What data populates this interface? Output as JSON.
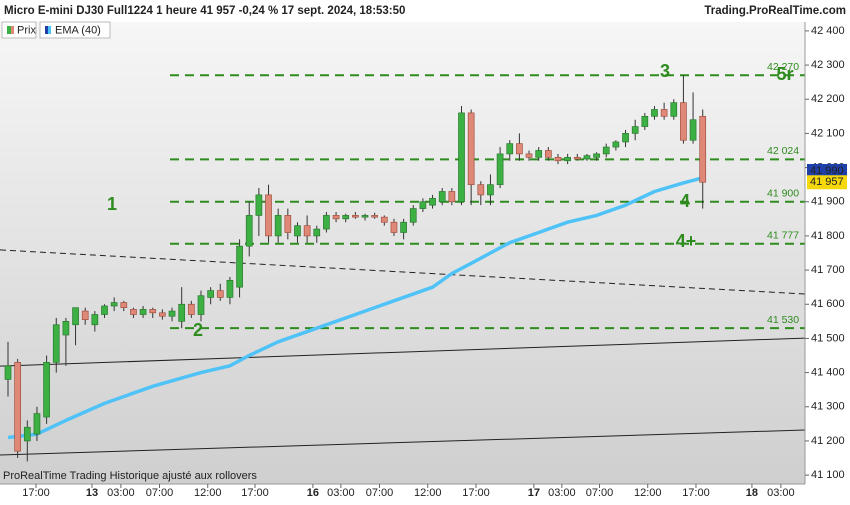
{
  "chart_data": {
    "type": "candlestick",
    "title": "Micro E-mini DJ30 Full1224 1 heure 41 957 -0,24 % 17 sept. 2024, 18:53:50",
    "source": "Trading.ProRealTime.com",
    "footer": "ProRealTime Trading  Historique ajusté aux rollovers",
    "xlim": [
      -0.83,
      82.6
    ],
    "ylim": [
      41074,
      42426
    ],
    "xticks": [
      {
        "value": 2.9,
        "label": "17:00"
      },
      {
        "value": 8.7,
        "label": "13"
      },
      {
        "value": 11.7,
        "label": "03:00"
      },
      {
        "value": 15.7,
        "label": "07:00"
      },
      {
        "value": 20.7,
        "label": "12:00"
      },
      {
        "value": 25.6,
        "label": "17:00"
      },
      {
        "value": 31.6,
        "label": "16"
      },
      {
        "value": 34.5,
        "label": "03:00"
      },
      {
        "value": 38.5,
        "label": "07:00"
      },
      {
        "value": 43.5,
        "label": "12:00"
      },
      {
        "value": 48.5,
        "label": "17:00"
      },
      {
        "value": 54.5,
        "label": "17"
      },
      {
        "value": 57.4,
        "label": "03:00"
      },
      {
        "value": 61.3,
        "label": "07:00"
      },
      {
        "value": 66.3,
        "label": "12:00"
      },
      {
        "value": 71.3,
        "label": "17:00"
      },
      {
        "value": 77.1,
        "label": "18"
      },
      {
        "value": 80.1,
        "label": "03:00"
      }
    ],
    "yticks": [
      {
        "value": 41100,
        "label": "41 100"
      },
      {
        "value": 41200,
        "label": "41 200"
      },
      {
        "value": 41300,
        "label": "41 300"
      },
      {
        "value": 41400,
        "label": "41 400"
      },
      {
        "value": 41500,
        "label": "41 500"
      },
      {
        "value": 41600,
        "label": "41 600"
      },
      {
        "value": 41700,
        "label": "41 700"
      },
      {
        "value": 41800,
        "label": "41 800"
      },
      {
        "value": 41900,
        "label": "41 900"
      },
      {
        "value": 42000,
        "label": "42 000"
      },
      {
        "value": 42100,
        "label": "42 100"
      },
      {
        "value": 42200,
        "label": "42 200"
      },
      {
        "value": 42300,
        "label": "42 300"
      },
      {
        "value": 42400,
        "label": "42 400"
      }
    ],
    "candles": {
      "name": "Prix",
      "up_color": "#3cb043",
      "down_color": "#e08878",
      "x": [
        0,
        1,
        2,
        3,
        4,
        5,
        6,
        7,
        8,
        9,
        10,
        11,
        12,
        13,
        14,
        15,
        16,
        17,
        18,
        19,
        20,
        21,
        22,
        23,
        24,
        25,
        26,
        27,
        28,
        29,
        30,
        31,
        32,
        33,
        34,
        35,
        36,
        37,
        38,
        39,
        40,
        41,
        42,
        43,
        44,
        45,
        46,
        47,
        48,
        49,
        50,
        51,
        52,
        53,
        54,
        55,
        56,
        57,
        58,
        59,
        60,
        61,
        62,
        63,
        64,
        65,
        66,
        67,
        68,
        69,
        70,
        71,
        72
      ],
      "open": [
        41380,
        41430,
        41200,
        41220,
        41270,
        41430,
        41510,
        41540,
        41580,
        41540,
        41570,
        41595,
        41605,
        41585,
        41570,
        41585,
        41575,
        41565,
        41550,
        41600,
        41570,
        41620,
        41640,
        41620,
        41650,
        41770,
        41860,
        41920,
        41800,
        41860,
        41800,
        41830,
        41800,
        41820,
        41860,
        41850,
        41860,
        41855,
        41860,
        41855,
        41840,
        41810,
        41840,
        41880,
        41890,
        41900,
        41930,
        41900,
        42160,
        41950,
        41920,
        41950,
        42040,
        42070,
        42040,
        42030,
        42050,
        42030,
        42020,
        42030,
        42025,
        42030,
        42040,
        42060,
        42075,
        42100,
        42120,
        42150,
        42170,
        42150,
        42190,
        42080,
        42150
      ],
      "high": [
        41490,
        41440,
        41260,
        41300,
        41450,
        41560,
        41560,
        41590,
        41590,
        41580,
        41600,
        41620,
        41610,
        41590,
        41595,
        41590,
        41585,
        41590,
        41650,
        41610,
        41640,
        41650,
        41660,
        41680,
        41790,
        41900,
        41940,
        41950,
        41880,
        41880,
        41840,
        41860,
        41830,
        41870,
        41870,
        41865,
        41870,
        41865,
        41868,
        41860,
        41850,
        41850,
        41890,
        41910,
        41920,
        41940,
        41940,
        42180,
        42170,
        41960,
        41980,
        42060,
        42080,
        42100,
        42050,
        42060,
        42060,
        42040,
        42040,
        42040,
        42040,
        42045,
        42070,
        42080,
        42110,
        42140,
        42160,
        42180,
        42190,
        42200,
        42270,
        42220,
        42170
      ],
      "low": [
        41330,
        41150,
        41140,
        41200,
        41250,
        41400,
        41420,
        41480,
        41540,
        41520,
        41560,
        41580,
        41580,
        41560,
        41560,
        41560,
        41555,
        41550,
        41530,
        41560,
        41550,
        41600,
        41610,
        41600,
        41620,
        41740,
        41800,
        41780,
        41780,
        41790,
        41780,
        41780,
        41780,
        41810,
        41840,
        41840,
        41850,
        41845,
        41850,
        41830,
        41800,
        41790,
        41830,
        41870,
        41880,
        41890,
        41890,
        41890,
        41890,
        41890,
        41890,
        41940,
        42020,
        42020,
        42020,
        42020,
        42020,
        42010,
        42010,
        42020,
        42020,
        42020,
        42030,
        42050,
        42060,
        42080,
        42110,
        42140,
        42140,
        42140,
        42070,
        42070,
        41880
      ],
      "close": [
        41420,
        41170,
        41240,
        41280,
        41430,
        41540,
        41550,
        41590,
        41555,
        41570,
        41595,
        41605,
        41590,
        41570,
        41585,
        41575,
        41565,
        41580,
        41600,
        41570,
        41625,
        41640,
        41620,
        41670,
        41770,
        41860,
        41920,
        41800,
        41860,
        41810,
        41830,
        41800,
        41820,
        41860,
        41850,
        41860,
        41855,
        41860,
        41855,
        41840,
        41810,
        41840,
        41880,
        41900,
        41910,
        41930,
        41900,
        42160,
        41950,
        41920,
        41950,
        42040,
        42070,
        42040,
        42030,
        42050,
        42030,
        42020,
        42030,
        42025,
        42035,
        42040,
        42060,
        42075,
        42100,
        42120,
        42150,
        42170,
        42150,
        42190,
        42080,
        42140,
        41957
      ]
    },
    "ema": {
      "name": "EMA (40)",
      "color": "#4fc3f7",
      "x": [
        0,
        3,
        6,
        10,
        15,
        20,
        23,
        25,
        28,
        32,
        36,
        40,
        44,
        46,
        48,
        50,
        52,
        55,
        58,
        61,
        64,
        67,
        70,
        72
      ],
      "values": [
        41210,
        41220,
        41260,
        41310,
        41360,
        41400,
        41420,
        41450,
        41490,
        41530,
        41570,
        41610,
        41650,
        41690,
        41720,
        41750,
        41780,
        41810,
        41840,
        41860,
        41890,
        41930,
        41955,
        41970
      ]
    },
    "levels": [
      {
        "value": 42270,
        "label": "42 270"
      },
      {
        "value": 42024,
        "label": "42 024"
      },
      {
        "value": 41900,
        "label": "41 900"
      },
      {
        "value": 41777,
        "label": "41 777"
      },
      {
        "value": 41530,
        "label": "41 530"
      }
    ],
    "level_color": "#2e8b1e",
    "trend_lines": [
      {
        "y": [
          41759,
          41630
        ],
        "dashed": true
      },
      {
        "y": [
          41419,
          41501
        ],
        "dashed": false
      },
      {
        "y": [
          41159,
          41232
        ],
        "dashed": false
      }
    ],
    "annotations": [
      "1",
      "2",
      "3",
      "4",
      "4+",
      "5r"
    ],
    "price_tags": [
      {
        "value": 41990,
        "label": "41 990",
        "color": "#1f3fa8"
      },
      {
        "value": 41957,
        "label": "41 957",
        "color": "#f4d80b"
      }
    ]
  }
}
